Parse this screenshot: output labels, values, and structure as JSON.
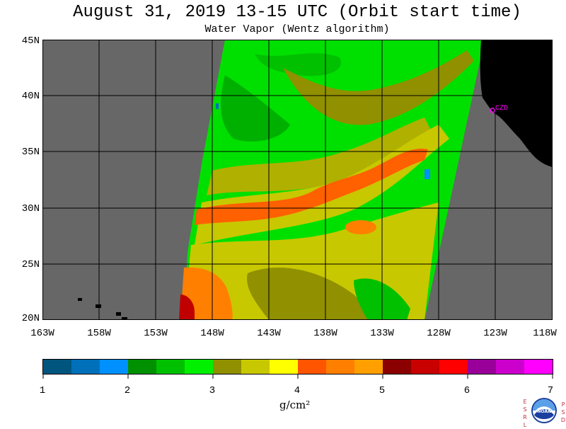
{
  "title": "August 31, 2019  13-15 UTC  (Orbit start time)",
  "subtitle": "Water Vapor (Wentz algorithm)",
  "map": {
    "lat_labels": [
      "45N",
      "40N",
      "35N",
      "30N",
      "25N",
      "20N"
    ],
    "lon_labels": [
      "163W",
      "158W",
      "153W",
      "148W",
      "143W",
      "138W",
      "133W",
      "128W",
      "123W",
      "118W"
    ],
    "lon_range": [
      -163,
      -118
    ],
    "lat_range": [
      20,
      45
    ],
    "station_label": "CZD",
    "colors": {
      "land": "#000000",
      "no_data": "#676767",
      "grid": "#000000",
      "station": "#ff00ff"
    }
  },
  "colorbar": {
    "ticks": [
      "1",
      "2",
      "3",
      "4",
      "5",
      "6",
      "7"
    ],
    "units": "g/cm²",
    "colors": [
      "#00557f",
      "#0070bb",
      "#0090ff",
      "#009000",
      "#00c000",
      "#00f000",
      "#909000",
      "#c8c800",
      "#ffff00",
      "#ff5500",
      "#ff7f00",
      "#ffa000",
      "#8b0000",
      "#c80000",
      "#ff0000",
      "#990099",
      "#cc00cc",
      "#ff00ff"
    ]
  },
  "logo": {
    "left_text": "ESRL",
    "right_text": "PSD",
    "center_text": "NOAA"
  }
}
